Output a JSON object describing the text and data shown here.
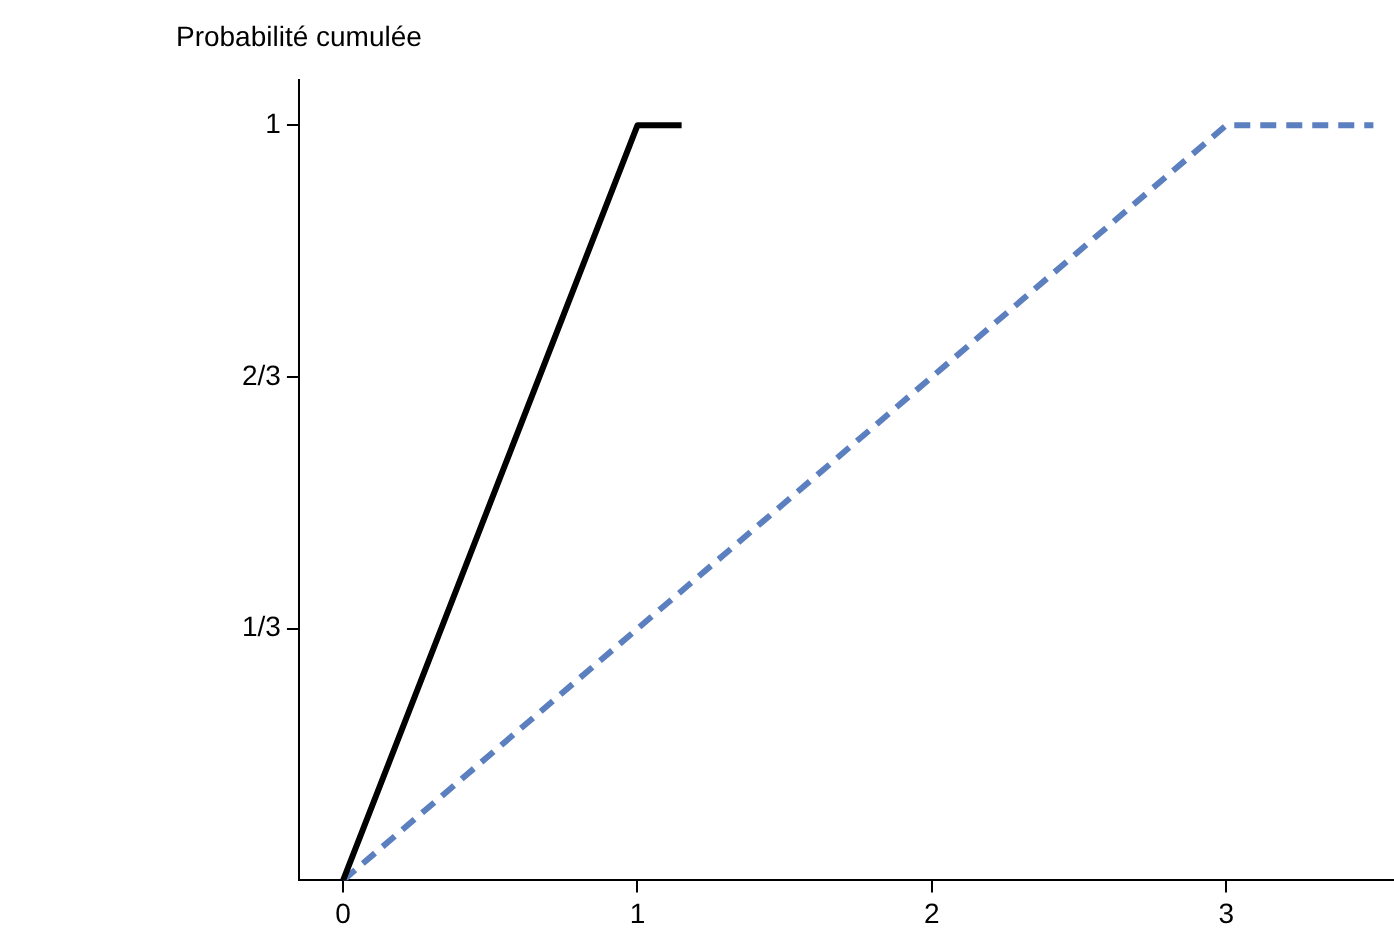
{
  "chart_data": {
    "type": "line",
    "ylabel": "Probabilité cumulée",
    "series": [
      {
        "color": "#000000",
        "line_style": "solid",
        "x": [
          0,
          1,
          1.15
        ],
        "values": [
          0,
          1,
          1
        ]
      },
      {
        "color": "#5b7fbf",
        "line_style": "dashed",
        "x": [
          0,
          3,
          3.5
        ],
        "values": [
          0,
          1,
          1
        ]
      }
    ],
    "xlim": [
      -0.15,
      3.57
    ],
    "xticks": [
      0,
      1,
      2,
      3
    ],
    "ylim": [
      0,
      1.06
    ],
    "yticks": [
      {
        "value": 0.3333,
        "label": "1/3"
      },
      {
        "value": 0.6667,
        "label": "2/3"
      },
      1
    ],
    "grid": false,
    "legend": false,
    "marker": "none"
  }
}
